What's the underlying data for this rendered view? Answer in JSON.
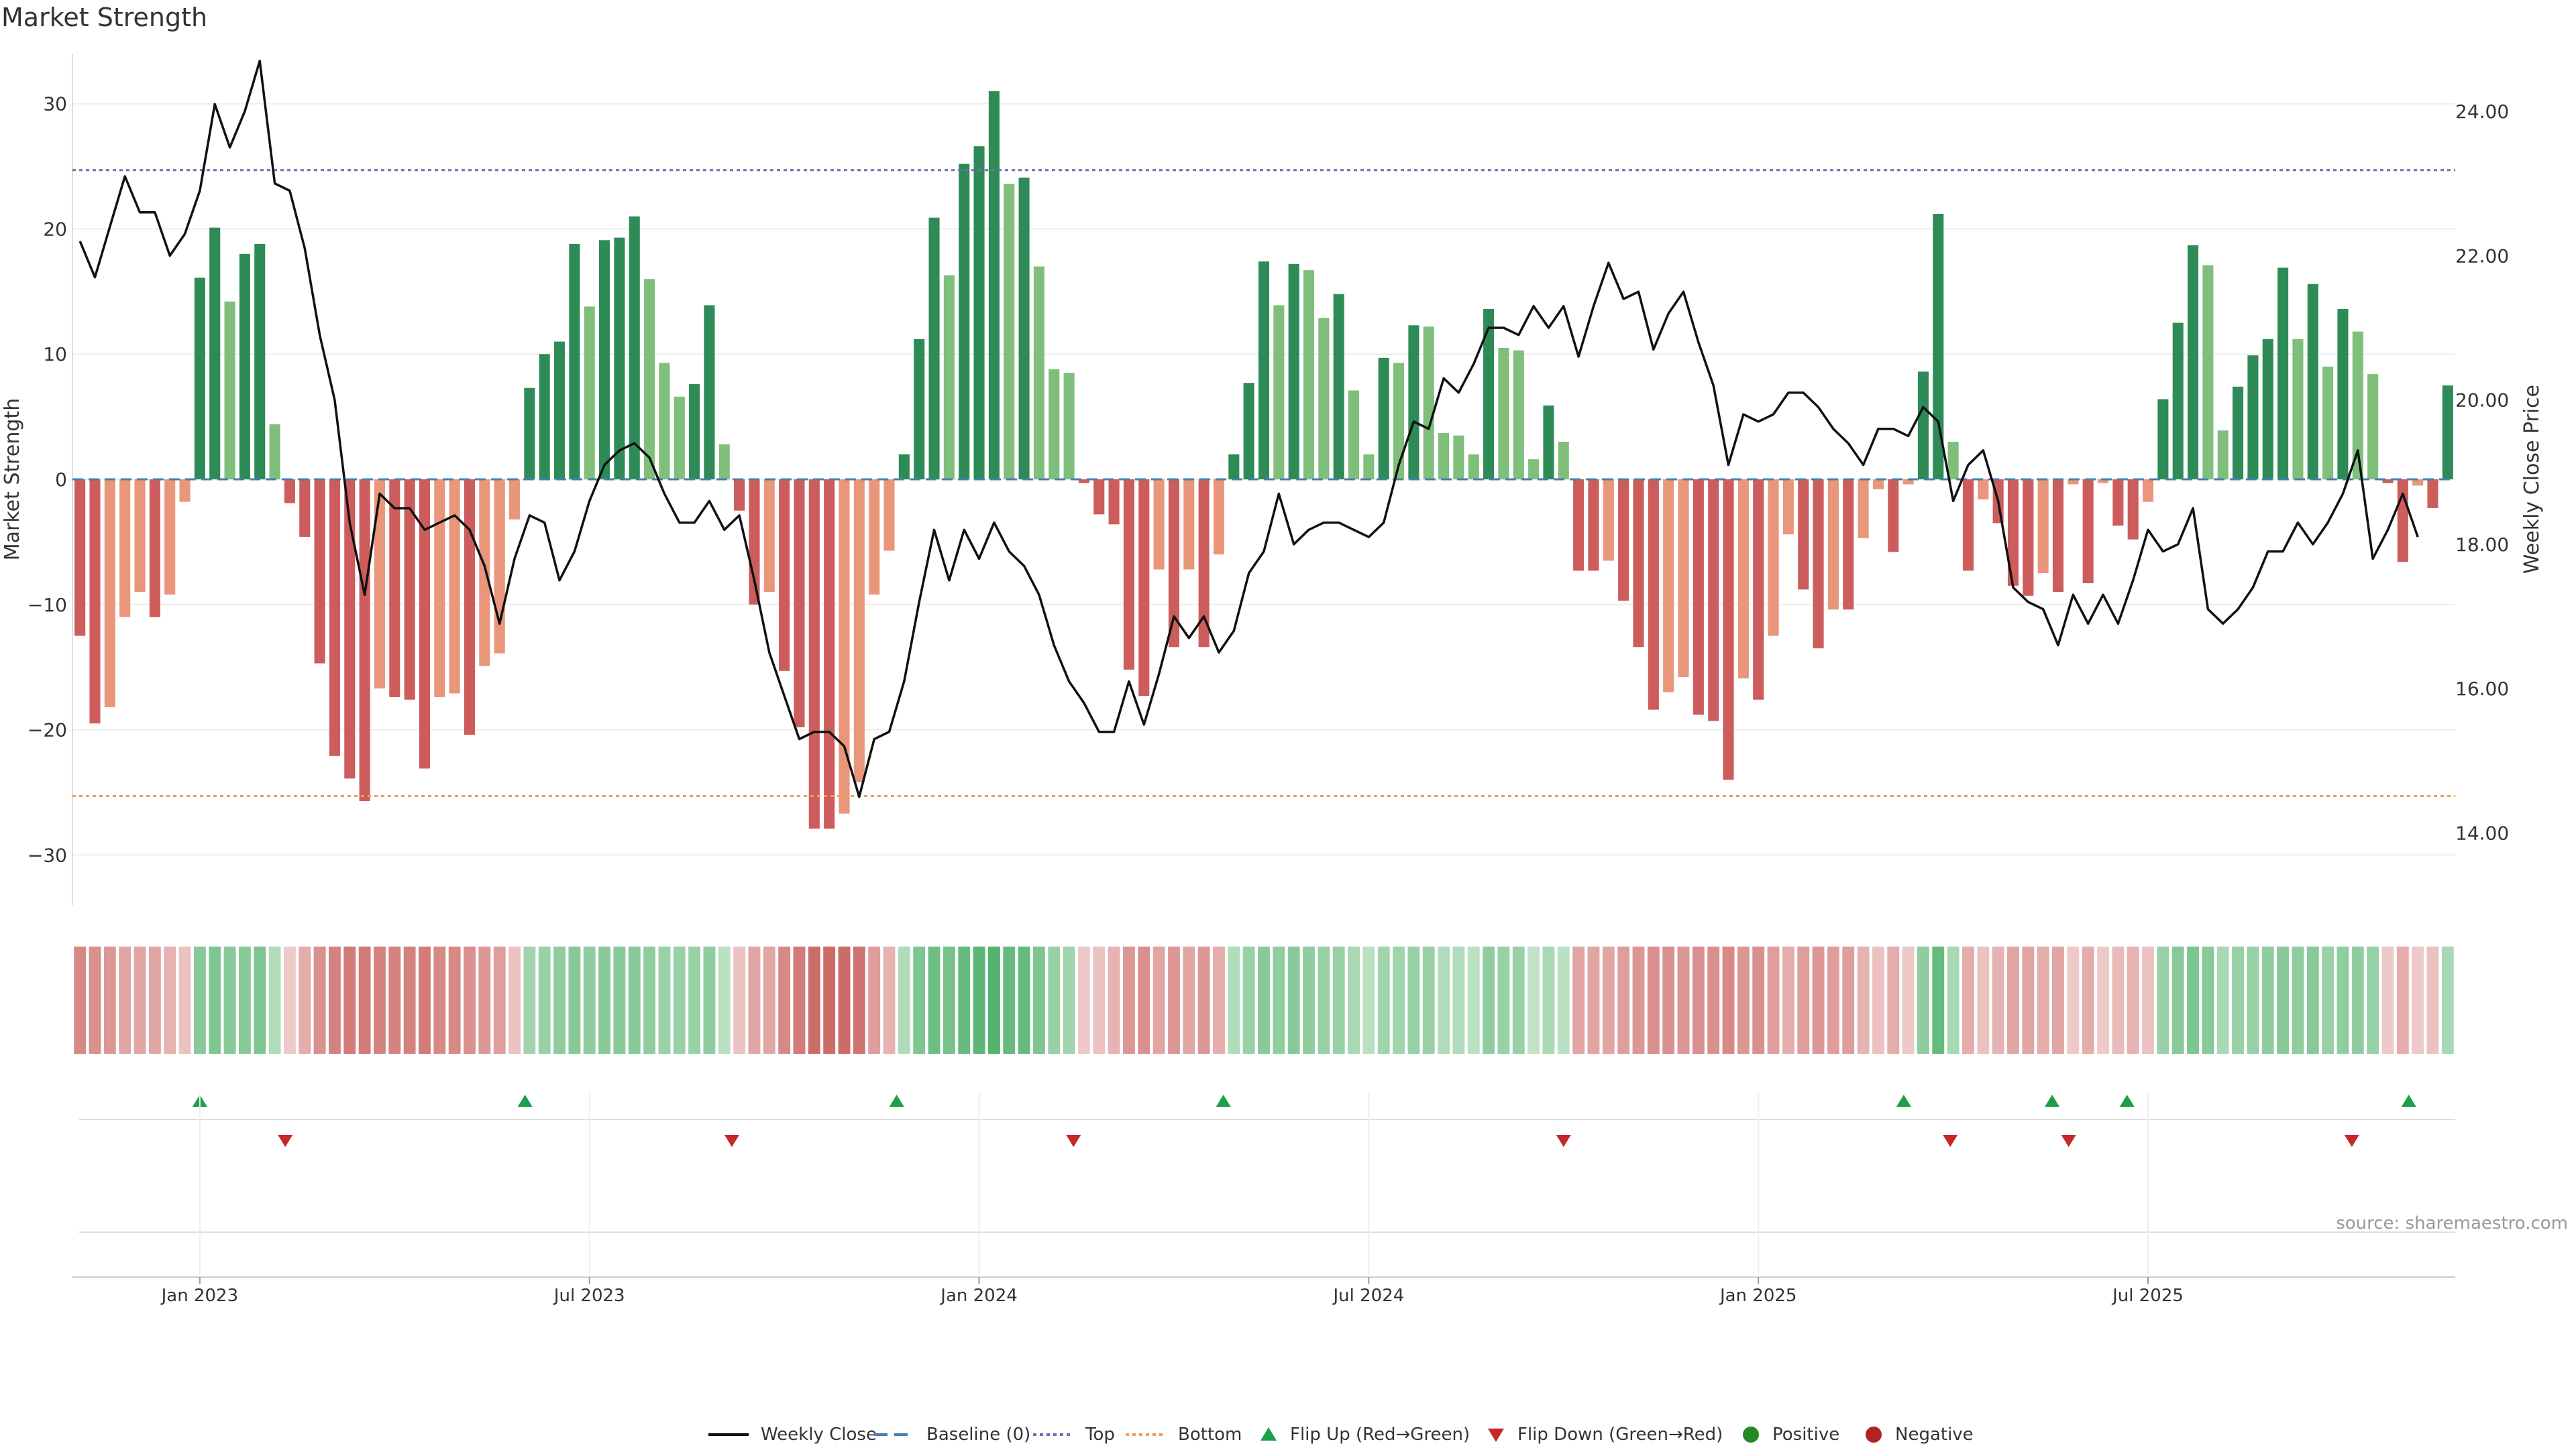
{
  "chart_data": {
    "type": "bar",
    "title": "Market Strength",
    "source": "source: sharemaestro.com",
    "y_left_label": "Market Strength",
    "y_right_label": "Weekly Close Price",
    "ylim": [
      -34,
      34
    ],
    "y2lim": [
      13.0,
      24.8
    ],
    "y_ticks": [
      -30,
      -20,
      -10,
      0,
      10,
      20,
      30
    ],
    "y2_ticks": [
      14,
      16,
      18,
      20,
      22,
      24
    ],
    "y2_tick_labels": [
      "14.00",
      "16.00",
      "18.00",
      "20.00",
      "22.00",
      "24.00"
    ],
    "top_level": 24.7,
    "bottom_level": -25.3,
    "x_tick_labels": [
      "Jan 2023",
      "Jul 2023",
      "Jan 2024",
      "Jul 2024",
      "Jan 2025",
      "Jul 2025"
    ],
    "x_tick_weeks": [
      8.5,
      34.5,
      60.5,
      86.5,
      112.5,
      138.5
    ],
    "strength": [
      -12.5,
      -19.5,
      -18.2,
      -11,
      -9,
      -11,
      -9.2,
      -1.8,
      16.1,
      20.1,
      14.2,
      18,
      18.8,
      4.4,
      -1.9,
      -4.6,
      -14.7,
      -22.1,
      -23.9,
      -25.7,
      -16.7,
      -17.4,
      -17.6,
      -23.1,
      -17.4,
      -17.1,
      -20.4,
      -14.9,
      -13.9,
      -3.2,
      7.3,
      10,
      11,
      18.8,
      13.8,
      19.1,
      19.3,
      21,
      16,
      9.3,
      6.6,
      7.6,
      13.9,
      2.8,
      -2.5,
      -10,
      -9,
      -15.3,
      -19.8,
      -27.9,
      -27.9,
      -26.7,
      -24.2,
      -9.2,
      -5.7,
      2,
      11.2,
      20.9,
      16.3,
      25.2,
      26.6,
      31,
      23.6,
      24.1,
      17,
      8.8,
      8.5,
      -0.3,
      -2.8,
      -3.6,
      -15.2,
      -17.3,
      -7.2,
      -13.4,
      -7.2,
      -13.4,
      -6,
      2,
      7.7,
      17.4,
      13.9,
      17.2,
      16.7,
      12.9,
      14.8,
      7.1,
      2,
      9.7,
      9.3,
      12.3,
      12.2,
      3.7,
      3.5,
      2,
      13.6,
      10.5,
      10.3,
      1.6,
      5.9,
      3,
      -7.3,
      -7.3,
      -6.5,
      -9.7,
      -13.4,
      -18.4,
      -17,
      -15.8,
      -18.8,
      -19.3,
      -24,
      -15.9,
      -17.6,
      -12.5,
      -4.4,
      -8.8,
      -13.5,
      -10.4,
      -10.4,
      -4.7,
      -0.8,
      -5.8,
      -0.4,
      8.6,
      21.2,
      3,
      -7.3,
      -1.6,
      -3.5,
      -8.5,
      -9.3,
      -7.5,
      -9,
      -0.4,
      -8.3,
      -0.3,
      -3.7,
      -4.8,
      -1.8,
      6.4,
      12.5,
      18.7,
      17.1,
      3.9,
      7.4,
      9.9,
      11.2,
      16.9,
      11.2,
      15.6,
      9,
      13.6,
      11.8,
      8.4,
      -0.3,
      -6.6,
      -0.5,
      -2.3,
      7.5
    ],
    "weekly_close": [
      22.2,
      21.7,
      22.4,
      23.1,
      22.6,
      22.6,
      22,
      22.3,
      22.9,
      24.1,
      23.5,
      24,
      24.7,
      23,
      22.9,
      22.1,
      20.9,
      20,
      18.3,
      17.3,
      18.7,
      18.5,
      18.5,
      18.2,
      18.3,
      18.4,
      18.2,
      17.7,
      16.9,
      17.8,
      18.4,
      18.3,
      17.5,
      17.9,
      18.6,
      19.1,
      19.3,
      19.4,
      19.2,
      18.7,
      18.3,
      18.3,
      18.6,
      18.2,
      18.4,
      17.5,
      16.5,
      15.9,
      15.3,
      15.4,
      15.4,
      15.2,
      14.5,
      15.3,
      15.4,
      16.1,
      17.2,
      18.2,
      17.5,
      18.2,
      17.8,
      18.3,
      17.9,
      17.7,
      17.3,
      16.6,
      16.1,
      15.8,
      15.4,
      15.4,
      16.1,
      15.5,
      16.2,
      17,
      16.7,
      17,
      16.5,
      16.8,
      17.6,
      17.9,
      18.7,
      18,
      18.2,
      18.3,
      18.3,
      18.2,
      18.1,
      18.3,
      19.1,
      19.7,
      19.6,
      20.3,
      20.1,
      20.5,
      21,
      21,
      20.9,
      21.3,
      21,
      21.3,
      20.6,
      21.3,
      21.9,
      21.4,
      21.5,
      20.7,
      21.2,
      21.5,
      20.8,
      20.2,
      19.1,
      19.8,
      19.7,
      19.8,
      20.1,
      20.1,
      19.9,
      19.6,
      19.4,
      19.1,
      19.6,
      19.6,
      19.5,
      19.9,
      19.7,
      18.6,
      19.1,
      19.3,
      18.6,
      17.4,
      17.2,
      17.1,
      16.6,
      17.3,
      16.9,
      17.3,
      16.9,
      17.5,
      18.2,
      17.9,
      18,
      18.5,
      17.1,
      16.9,
      17.1,
      17.4,
      17.9,
      17.9,
      18.3,
      18,
      18.3,
      18.7,
      19.3,
      17.8,
      18.2,
      18.7,
      18.1
    ],
    "heat_strip": [
      -0.6,
      -0.55,
      -0.5,
      -0.4,
      -0.4,
      -0.4,
      -0.3,
      -0.2,
      0.55,
      0.6,
      0.55,
      0.55,
      0.6,
      0.3,
      -0.15,
      -0.35,
      -0.55,
      -0.65,
      -0.7,
      -0.7,
      -0.65,
      -0.65,
      -0.65,
      -0.7,
      -0.6,
      -0.6,
      -0.55,
      -0.5,
      -0.45,
      -0.2,
      0.4,
      0.45,
      0.5,
      0.55,
      0.5,
      0.55,
      0.55,
      0.55,
      0.5,
      0.45,
      0.45,
      0.45,
      0.5,
      0.25,
      -0.2,
      -0.4,
      -0.4,
      -0.6,
      -0.7,
      -0.8,
      -0.8,
      -0.8,
      -0.75,
      -0.45,
      -0.3,
      0.3,
      0.6,
      0.7,
      0.65,
      0.75,
      0.8,
      0.85,
      0.75,
      0.75,
      0.6,
      0.45,
      0.4,
      -0.15,
      -0.2,
      -0.3,
      -0.5,
      -0.55,
      -0.4,
      -0.5,
      -0.4,
      -0.5,
      -0.35,
      0.3,
      0.45,
      0.55,
      0.5,
      0.55,
      0.5,
      0.45,
      0.45,
      0.35,
      0.25,
      0.4,
      0.4,
      0.45,
      0.45,
      0.3,
      0.3,
      0.25,
      0.5,
      0.45,
      0.45,
      0.2,
      0.35,
      0.25,
      -0.4,
      -0.4,
      -0.4,
      -0.45,
      -0.5,
      -0.55,
      -0.55,
      -0.5,
      -0.55,
      -0.55,
      -0.6,
      -0.5,
      -0.55,
      -0.45,
      -0.35,
      -0.45,
      -0.5,
      -0.45,
      -0.45,
      -0.3,
      -0.2,
      -0.35,
      -0.15,
      0.5,
      0.75,
      0.35,
      -0.35,
      -0.2,
      -0.3,
      -0.4,
      -0.4,
      -0.35,
      -0.4,
      -0.15,
      -0.35,
      -0.15,
      -0.25,
      -0.3,
      -0.2,
      0.45,
      0.55,
      0.6,
      0.55,
      0.35,
      0.45,
      0.45,
      0.5,
      0.55,
      0.5,
      0.55,
      0.45,
      0.5,
      0.5,
      0.45,
      -0.15,
      -0.35,
      -0.15,
      -0.2,
      0.35
    ],
    "flip_up_weeks": [
      8.5,
      30.2,
      55,
      76.8,
      122.2,
      132.1,
      137.1,
      155.9
    ],
    "flip_down_weeks": [
      14.2,
      44,
      66.8,
      99.5,
      125.3,
      133.2,
      152.1
    ],
    "colors": {
      "strong_green": "#2e8b57",
      "light_green": "#7fbf7b",
      "strong_red": "#cd5c5c",
      "light_red": "#e9967a",
      "flip_up": "#1e9e4a",
      "flip_down": "#c62828",
      "top_line": "#7b68b5",
      "bottom_line": "#e8a060",
      "baseline": "#4a7fb0"
    }
  },
  "legend": {
    "weekly_close": "Weekly Close",
    "baseline": "Baseline (0)",
    "top": "Top",
    "bottom": "Bottom",
    "flip_up": "Flip Up (Red→Green)",
    "flip_down": "Flip Down (Green→Red)",
    "positive": "Positive",
    "negative": "Negative"
  }
}
